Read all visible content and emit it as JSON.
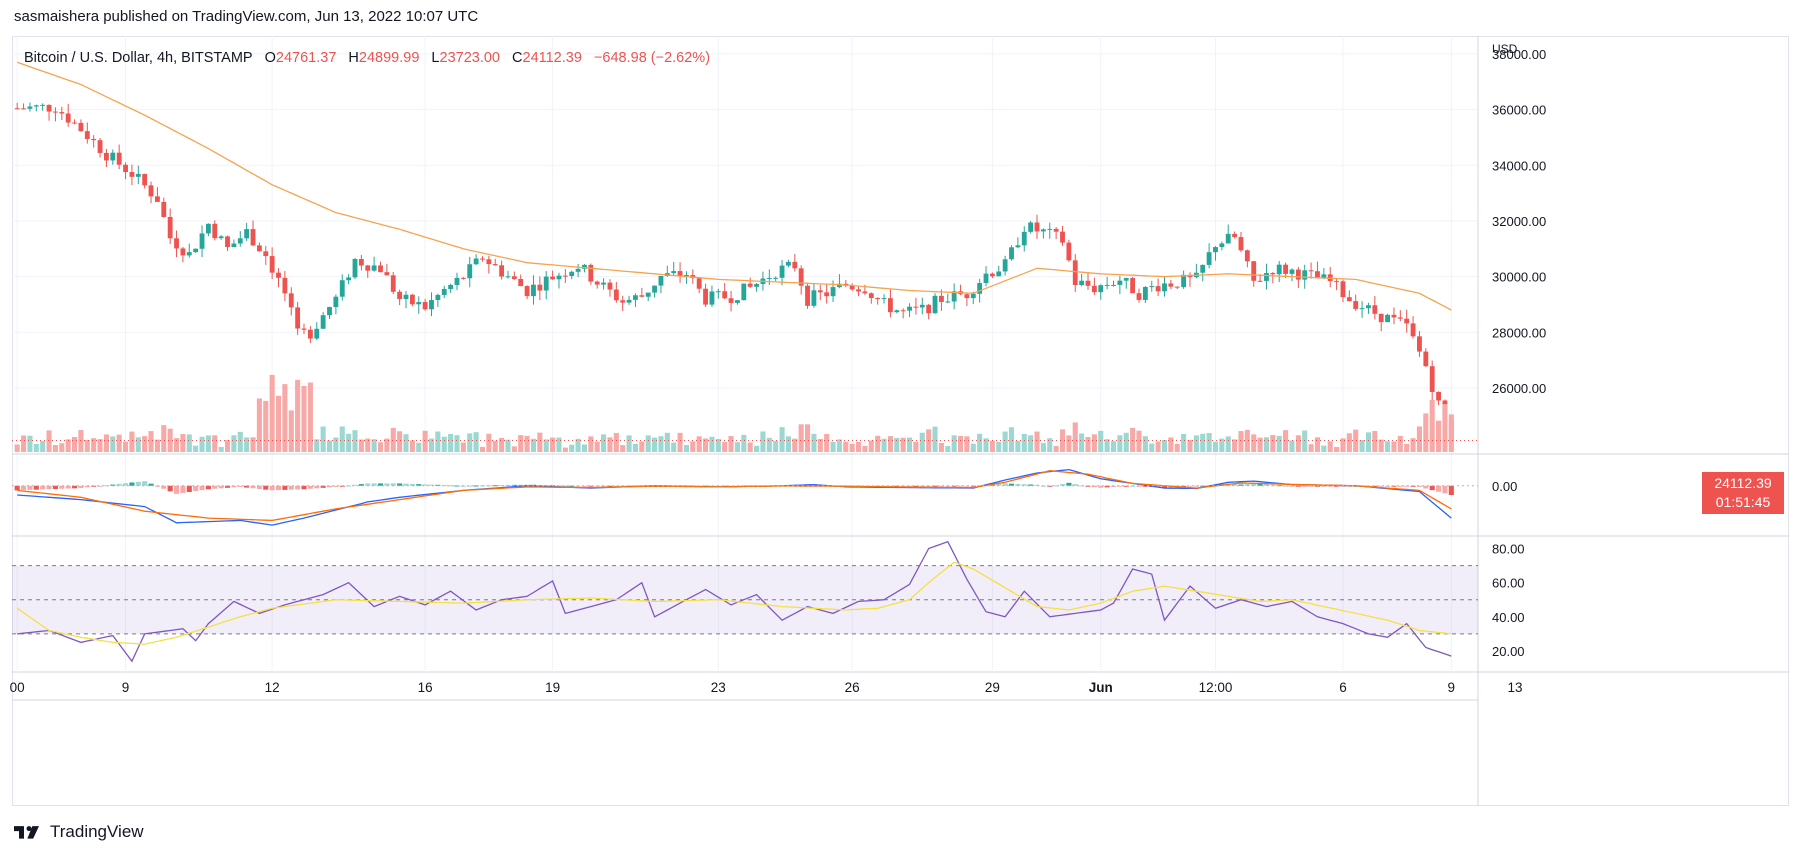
{
  "header": {
    "text": "sasmaishera published on TradingView.com, Jun 13, 2022 10:07 UTC"
  },
  "legend": {
    "symbol": "Bitcoin / U.S. Dollar, 4h, BITSTAMP",
    "o_label": "O",
    "o_value": "24761.37",
    "h_label": "H",
    "h_value": "24899.99",
    "l_label": "L",
    "l_value": "23723.00",
    "c_label": "C",
    "c_value": "24112.39",
    "change": "−648.98 (−2.62%)"
  },
  "price_tag": {
    "price": "24112.39",
    "countdown": "01:51:45"
  },
  "footer": {
    "brand": "TradingView"
  },
  "colors": {
    "up": "#26a69a",
    "down": "#ef5350",
    "up_vol": "#9cd8d1",
    "down_vol": "#f7a9a7",
    "ma": "#f7a350",
    "macd": "#2962ff",
    "signal": "#ff6d00",
    "rsi": "#7e57c2",
    "rsi_ma": "#f5e042"
  },
  "chart_data": [
    {
      "type": "candlestick",
      "panel": "price",
      "currency_label": "USD",
      "y_ticks": [
        "38000.00",
        "36000.00",
        "34000.00",
        "32000.00",
        "30000.00",
        "28000.00",
        "26000.00"
      ],
      "ylim": [
        23700,
        38500
      ],
      "x_ticks": [
        "00",
        "9",
        "12",
        "16",
        "19",
        "23",
        "26",
        "29",
        "Jun",
        "12:00",
        "6",
        "9",
        "13"
      ],
      "last_price": 24112.39,
      "close_path": [
        [
          0,
          36050
        ],
        [
          6,
          36100
        ],
        [
          10,
          35300
        ],
        [
          14,
          34400
        ],
        [
          18,
          33700
        ],
        [
          22,
          32800
        ],
        [
          24,
          31400
        ],
        [
          27,
          30800
        ],
        [
          30,
          31900
        ],
        [
          33,
          31000
        ],
        [
          36,
          31600
        ],
        [
          39,
          30800
        ],
        [
          42,
          29400
        ],
        [
          44,
          27900
        ],
        [
          46,
          28000
        ],
        [
          50,
          29200
        ],
        [
          53,
          30600
        ],
        [
          57,
          30300
        ],
        [
          60,
          29200
        ],
        [
          64,
          28900
        ],
        [
          67,
          29500
        ],
        [
          70,
          30000
        ],
        [
          73,
          30700
        ],
        [
          77,
          30000
        ],
        [
          80,
          29500
        ],
        [
          84,
          30000
        ],
        [
          88,
          30400
        ],
        [
          91,
          29800
        ],
        [
          95,
          29100
        ],
        [
          98,
          29300
        ],
        [
          101,
          30000
        ],
        [
          105,
          30100
        ],
        [
          108,
          29200
        ],
        [
          112,
          29300
        ],
        [
          115,
          29600
        ],
        [
          119,
          30200
        ],
        [
          122,
          30400
        ],
        [
          124,
          29200
        ],
        [
          127,
          29400
        ],
        [
          130,
          29700
        ],
        [
          133,
          29600
        ],
        [
          136,
          29000
        ],
        [
          139,
          28700
        ],
        [
          142,
          28800
        ],
        [
          145,
          29200
        ],
        [
          149,
          29400
        ],
        [
          152,
          30100
        ],
        [
          155,
          30400
        ],
        [
          158,
          31800
        ],
        [
          161,
          31600
        ],
        [
          164,
          31300
        ],
        [
          166,
          29800
        ],
        [
          169,
          29600
        ],
        [
          173,
          29900
        ],
        [
          176,
          29400
        ],
        [
          179,
          29700
        ],
        [
          182,
          29800
        ],
        [
          185,
          29900
        ],
        [
          188,
          31200
        ],
        [
          191,
          31400
        ],
        [
          194,
          29800
        ],
        [
          197,
          30300
        ],
        [
          200,
          30200
        ],
        [
          203,
          30000
        ],
        [
          206,
          29800
        ],
        [
          209,
          29200
        ],
        [
          212,
          28800
        ],
        [
          215,
          28500
        ],
        [
          218,
          28200
        ],
        [
          221,
          26800
        ],
        [
          223,
          25400
        ],
        [
          225,
          24112
        ]
      ],
      "volume_hint": "larger on selloffs near 11-12 and 13"
    },
    {
      "type": "line",
      "panel": "price",
      "series": [
        {
          "values": [
            [
              0,
              37700
            ],
            [
              10,
              36900
            ],
            [
              20,
              35800
            ],
            [
              30,
              34600
            ],
            [
              40,
              33300
            ],
            [
              50,
              32300
            ],
            [
              60,
              31700
            ],
            [
              70,
              31000
            ],
            [
              80,
              30500
            ],
            [
              90,
              30300
            ],
            [
              100,
              30100
            ],
            [
              110,
              29900
            ],
            [
              120,
              29800
            ],
            [
              130,
              29700
            ],
            [
              140,
              29500
            ],
            [
              150,
              29400
            ],
            [
              160,
              30300
            ],
            [
              165,
              30200
            ],
            [
              170,
              30100
            ],
            [
              180,
              30000
            ],
            [
              190,
              30100
            ],
            [
              200,
              30000
            ],
            [
              210,
              29900
            ],
            [
              220,
              29400
            ],
            [
              225,
              28800
            ]
          ]
        }
      ]
    },
    {
      "type": "histogram+line",
      "panel": "macd",
      "y_ticks": [
        "0.00"
      ],
      "ylim": [
        -2000,
        1200
      ],
      "series": [
        {
          "values": [
            [
              0,
              -400
            ],
            [
              10,
              -600
            ],
            [
              20,
              -900
            ],
            [
              25,
              -1600
            ],
            [
              35,
              -1500
            ],
            [
              40,
              -1700
            ],
            [
              45,
              -1400
            ],
            [
              55,
              -700
            ],
            [
              60,
              -500
            ],
            [
              70,
              -200
            ],
            [
              80,
              0
            ],
            [
              90,
              -100
            ],
            [
              100,
              0
            ],
            [
              110,
              -50
            ],
            [
              120,
              0
            ],
            [
              125,
              50
            ],
            [
              130,
              -50
            ],
            [
              140,
              -80
            ],
            [
              150,
              -100
            ],
            [
              155,
              250
            ],
            [
              160,
              550
            ],
            [
              165,
              700
            ],
            [
              170,
              300
            ],
            [
              180,
              -100
            ],
            [
              185,
              -120
            ],
            [
              190,
              150
            ],
            [
              194,
              200
            ],
            [
              200,
              50
            ],
            [
              210,
              0
            ],
            [
              220,
              -250
            ],
            [
              225,
              -1400
            ]
          ]
        },
        {
          "values": [
            [
              0,
              -200
            ],
            [
              10,
              -500
            ],
            [
              20,
              -1100
            ],
            [
              30,
              -1400
            ],
            [
              40,
              -1500
            ],
            [
              50,
              -1000
            ],
            [
              60,
              -600
            ],
            [
              70,
              -200
            ],
            [
              80,
              -50
            ],
            [
              90,
              -80
            ],
            [
              100,
              -20
            ],
            [
              110,
              -50
            ],
            [
              120,
              -10
            ],
            [
              130,
              -20
            ],
            [
              140,
              -60
            ],
            [
              150,
              -80
            ],
            [
              155,
              150
            ],
            [
              162,
              650
            ],
            [
              168,
              500
            ],
            [
              175,
              100
            ],
            [
              185,
              -100
            ],
            [
              192,
              120
            ],
            [
              200,
              60
            ],
            [
              210,
              0
            ],
            [
              220,
              -200
            ],
            [
              225,
              -1000
            ]
          ]
        }
      ]
    },
    {
      "type": "line",
      "panel": "rsi",
      "y_ticks": [
        "80.00",
        "60.00",
        "40.00",
        "20.00"
      ],
      "ylim": [
        10,
        85
      ],
      "bands": [
        30,
        50,
        70
      ],
      "series": [
        {
          "values": [
            [
              0,
              30
            ],
            [
              5,
              32
            ],
            [
              10,
              25
            ],
            [
              15,
              29
            ],
            [
              18,
              14
            ],
            [
              20,
              30
            ],
            [
              26,
              33
            ],
            [
              28,
              26
            ],
            [
              30,
              36
            ],
            [
              34,
              49
            ],
            [
              38,
              42
            ],
            [
              42,
              47
            ],
            [
              48,
              53
            ],
            [
              52,
              60
            ],
            [
              56,
              46
            ],
            [
              60,
              52
            ],
            [
              64,
              47
            ],
            [
              68,
              55
            ],
            [
              72,
              44
            ],
            [
              76,
              50
            ],
            [
              80,
              52
            ],
            [
              84,
              61
            ],
            [
              86,
              42
            ],
            [
              90,
              46
            ],
            [
              94,
              50
            ],
            [
              98,
              60
            ],
            [
              100,
              40
            ],
            [
              104,
              48
            ],
            [
              108,
              56
            ],
            [
              112,
              47
            ],
            [
              116,
              53
            ],
            [
              120,
              38
            ],
            [
              124,
              46
            ],
            [
              128,
              42
            ],
            [
              132,
              49
            ],
            [
              136,
              50
            ],
            [
              140,
              59
            ],
            [
              143,
              80
            ],
            [
              146,
              84
            ],
            [
              149,
              62
            ],
            [
              152,
              43
            ],
            [
              155,
              40
            ],
            [
              158,
              55
            ],
            [
              162,
              40
            ],
            [
              166,
              42
            ],
            [
              170,
              44
            ],
            [
              172,
              48
            ],
            [
              175,
              68
            ],
            [
              178,
              65
            ],
            [
              180,
              38
            ],
            [
              184,
              58
            ],
            [
              188,
              45
            ],
            [
              192,
              50
            ],
            [
              196,
              46
            ],
            [
              200,
              49
            ],
            [
              204,
              40
            ],
            [
              208,
              36
            ],
            [
              212,
              30
            ],
            [
              215,
              28
            ],
            [
              218,
              36
            ],
            [
              221,
              22
            ],
            [
              225,
              17
            ]
          ]
        },
        {
          "values": [
            [
              0,
              45
            ],
            [
              5,
              32
            ],
            [
              10,
              28
            ],
            [
              15,
              25
            ],
            [
              20,
              24
            ],
            [
              25,
              28
            ],
            [
              30,
              34
            ],
            [
              35,
              40
            ],
            [
              40,
              45
            ],
            [
              50,
              50
            ],
            [
              60,
              49
            ],
            [
              70,
              48
            ],
            [
              80,
              50
            ],
            [
              90,
              51
            ],
            [
              100,
              49
            ],
            [
              110,
              50
            ],
            [
              120,
              46
            ],
            [
              130,
              44
            ],
            [
              135,
              45
            ],
            [
              140,
              50
            ],
            [
              143,
              60
            ],
            [
              147,
              72
            ],
            [
              150,
              68
            ],
            [
              155,
              57
            ],
            [
              160,
              46
            ],
            [
              165,
              44
            ],
            [
              170,
              48
            ],
            [
              175,
              55
            ],
            [
              180,
              58
            ],
            [
              185,
              55
            ],
            [
              190,
              52
            ],
            [
              195,
              49
            ],
            [
              200,
              50
            ],
            [
              205,
              46
            ],
            [
              210,
              42
            ],
            [
              215,
              38
            ],
            [
              220,
              32
            ],
            [
              225,
              30
            ]
          ]
        }
      ]
    }
  ]
}
